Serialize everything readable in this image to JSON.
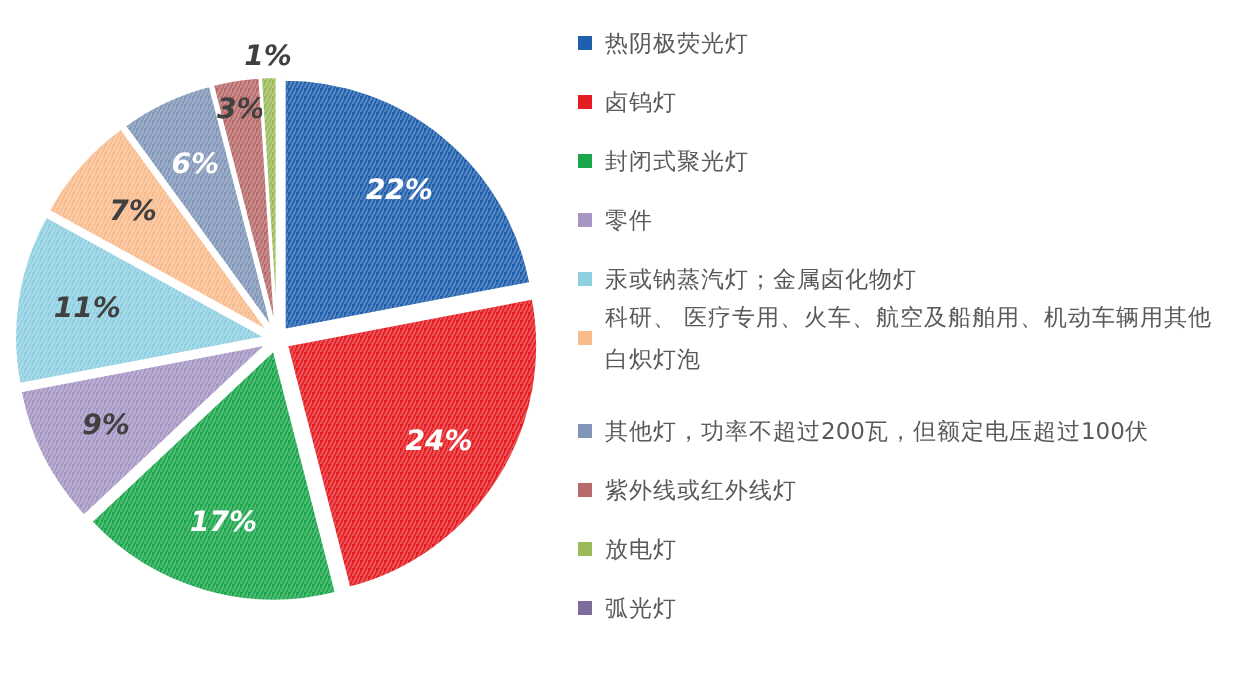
{
  "chart_data": {
    "type": "pie",
    "categories": [
      "热阴极荧光灯",
      "卤钨灯",
      "封闭式聚光灯",
      "零件",
      "汞或钠蒸汽灯；金属卤化物灯",
      "科研、 医疗专用、火车、航空及船舶用、机动车辆用其他白炽灯泡",
      "其他灯，功率不超过200瓦，但额定电压超过100伏",
      "紫外线或红外线灯",
      "放电灯",
      "弧光灯"
    ],
    "values": [
      22,
      24,
      17,
      9,
      11,
      7,
      6,
      3,
      1,
      0
    ],
    "value_labels": [
      "22%",
      "24%",
      "17%",
      "9%",
      "11%",
      "7%",
      "6%",
      "3%",
      "1%",
      null
    ],
    "colors": [
      "#1f5fad",
      "#e51d22",
      "#1aa64a",
      "#a596c4",
      "#8fcfe2",
      "#f8bb8c",
      "#8196b8",
      "#b86a6a",
      "#9bbb59",
      "#7e6a9c"
    ],
    "legend": "right"
  }
}
